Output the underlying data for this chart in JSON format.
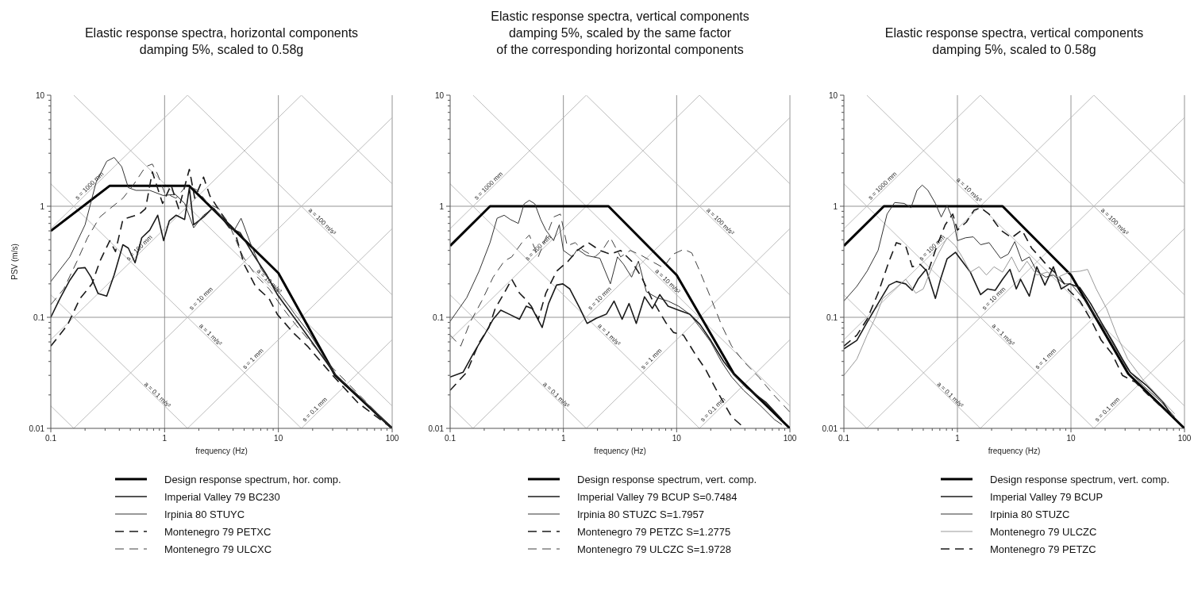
{
  "chart_data": [
    {
      "type": "line",
      "title": "Elastic response spectra, horizontal components\ndamping 5%, scaled to 0.58g",
      "xlabel": "frequency (Hz)",
      "ylabel": "PSV (m/s)",
      "xlim": [
        0.1,
        100
      ],
      "ylim": [
        0.01,
        10
      ],
      "xticks": [
        0.1,
        {
          "value": 0.2,
          "label": null
        },
        {
          "value": 0.3,
          "label": null
        },
        {
          "value": 0.4,
          "label": null
        },
        {
          "value": 0.5,
          "label": null
        },
        {
          "value": 0.6,
          "label": null
        },
        {
          "value": 0.7,
          "label": null
        },
        {
          "value": 0.8,
          "label": null
        },
        {
          "value": 0.9,
          "label": null
        },
        1,
        {
          "value": 2,
          "label": null
        },
        {
          "value": 3,
          "label": null
        },
        {
          "value": 4,
          "label": null
        },
        {
          "value": 5,
          "label": null
        },
        {
          "value": 6,
          "label": null
        },
        {
          "value": 7,
          "label": null
        },
        {
          "value": 8,
          "label": null
        },
        {
          "value": 9,
          "label": null
        },
        10,
        {
          "value": 20,
          "label": null
        },
        {
          "value": 30,
          "label": null
        },
        {
          "value": 40,
          "label": null
        },
        {
          "value": 50,
          "label": null
        },
        {
          "value": 60,
          "label": null
        },
        {
          "value": 70,
          "label": null
        },
        {
          "value": 80,
          "label": null
        },
        {
          "value": 90,
          "label": null
        },
        100
      ],
      "yticks": [
        0.01,
        {
          "value": 0.02,
          "label": null
        },
        {
          "value": 0.03,
          "label": null
        },
        {
          "value": 0.04,
          "label": null
        },
        {
          "value": 0.05,
          "label": null
        },
        {
          "value": 0.06,
          "label": null
        },
        {
          "value": 0.07,
          "label": null
        },
        {
          "value": 0.08,
          "label": null
        },
        {
          "value": 0.09,
          "label": null
        },
        0.1,
        {
          "value": 0.2,
          "label": null
        },
        {
          "value": 0.3,
          "label": null
        },
        {
          "value": 0.4,
          "label": null
        },
        {
          "value": 0.5,
          "label": null
        },
        {
          "value": 0.6,
          "label": null
        },
        {
          "value": 0.7,
          "label": null
        },
        {
          "value": 0.8,
          "label": null
        },
        {
          "value": 0.9,
          "label": null
        },
        1,
        {
          "value": 2,
          "label": null
        },
        {
          "value": 3,
          "label": null
        },
        {
          "value": 4,
          "label": null
        },
        {
          "value": 5,
          "label": null
        },
        {
          "value": 6,
          "label": null
        },
        {
          "value": 7,
          "label": null
        },
        {
          "value": 8,
          "label": null
        },
        {
          "value": 9,
          "label": null
        },
        10
      ],
      "log": "xy",
      "grid": true,
      "legend": "bottom",
      "marker": "none",
      "series": [
        {
          "name": "Design response spectrum, hor. comp.",
          "color": "#000000",
          "line_style": "solid",
          "x": [
            0.1,
            0.33,
            1.64,
            10,
            31.6,
            100
          ],
          "values": [
            0.6,
            1.53,
            1.53,
            0.25,
            0.03,
            0.01
          ]
        },
        {
          "name": "Imperial Valley 79 BC230",
          "color": "#1a1a1a",
          "line_style": "solid",
          "x": [
            0.1,
            0.12,
            0.147,
            0.173,
            0.2,
            0.226,
            0.26,
            0.31,
            0.36,
            0.43,
            0.48,
            0.55,
            0.63,
            0.74,
            0.87,
            0.98,
            1.1,
            1.26,
            1.5,
            1.65,
            1.8,
            2.2,
            2.6,
            3,
            3.7,
            4.6,
            6,
            7.9,
            9.8,
            12.8,
            16.7,
            32,
            100
          ],
          "values": [
            0.1,
            0.147,
            0.216,
            0.276,
            0.28,
            0.23,
            0.164,
            0.155,
            0.24,
            0.45,
            0.42,
            0.31,
            0.52,
            0.61,
            0.83,
            0.49,
            0.74,
            0.83,
            0.76,
            1.47,
            0.68,
            0.8,
            0.95,
            0.85,
            0.64,
            0.58,
            0.37,
            0.24,
            0.16,
            0.11,
            0.076,
            0.03,
            0.01
          ]
        },
        {
          "name": "Irpinia 80 STUYC",
          "color": "#333333",
          "line_style": "solid",
          "x": [
            0.1,
            0.147,
            0.2,
            0.25,
            0.31,
            0.36,
            0.42,
            0.48,
            0.56,
            0.74,
            0.97,
            1.24,
            1.5,
            1.8,
            2.2,
            2.7,
            3.3,
            4.1,
            4.7,
            5.7,
            7.1,
            8.8,
            11,
            14,
            18.7,
            24,
            32,
            50,
            100
          ],
          "values": [
            0.21,
            0.35,
            0.68,
            1.64,
            2.54,
            2.75,
            2.27,
            1.47,
            1.39,
            1.39,
            1.25,
            1.28,
            1.06,
            0.64,
            0.83,
            0.97,
            0.76,
            0.61,
            0.78,
            0.46,
            0.27,
            0.2,
            0.15,
            0.106,
            0.072,
            0.048,
            0.03,
            0.02,
            0.01
          ]
        },
        {
          "name": "Montenegro 79 PETXC",
          "color": "#1a1a1a",
          "line_style": "dashed",
          "x": [
            0.1,
            0.14,
            0.18,
            0.23,
            0.27,
            0.33,
            0.37,
            0.43,
            0.6,
            0.68,
            0.78,
            0.96,
            1.14,
            1.33,
            1.65,
            1.84,
            2.2,
            2.5,
            3.3,
            4.1,
            5,
            6.3,
            8.3,
            9.8,
            13.6,
            18,
            30,
            50,
            100
          ],
          "values": [
            0.055,
            0.085,
            0.147,
            0.2,
            0.32,
            0.49,
            0.39,
            0.76,
            0.85,
            0.95,
            2.04,
            1.06,
            1.55,
            0.95,
            2.15,
            1.18,
            1.83,
            1.24,
            0.8,
            0.61,
            0.3,
            0.19,
            0.147,
            0.106,
            0.072,
            0.055,
            0.03,
            0.017,
            0.01
          ]
        },
        {
          "name": "Montenegro 79 ULCXC",
          "color": "#404040",
          "line_style": "dashed",
          "x": [
            0.1,
            0.13,
            0.17,
            0.21,
            0.27,
            0.33,
            0.43,
            0.53,
            0.68,
            0.78,
            0.87,
            1,
            1.26,
            1.57,
            1.95,
            2.4,
            3,
            3.7,
            4.9,
            6.3,
            8.3,
            11,
            14.3,
            30,
            100
          ],
          "values": [
            0.13,
            0.18,
            0.32,
            0.52,
            0.8,
            0.95,
            1.18,
            1.55,
            2.27,
            2.4,
            1.93,
            1.32,
            1.18,
            1.55,
            1.39,
            1.06,
            0.95,
            0.68,
            0.35,
            0.24,
            0.18,
            0.12,
            0.085,
            0.035,
            0.01
          ]
        },
        {
          "color": "#b4b4b4",
          "x": [
            0.1,
            1.5915
          ],
          "values": [
            0.6283,
            10
          ]
        },
        {
          "color": "#b4b4b4",
          "x": [
            0.1,
            15.915
          ],
          "values": [
            0.06283,
            10
          ]
        },
        {
          "color": "#b4b4b4",
          "x": [
            0.15915,
            100
          ],
          "values": [
            0.01,
            6.283
          ]
        },
        {
          "color": "#b4b4b4",
          "x": [
            1.5915,
            100
          ],
          "values": [
            0.01,
            0.6283
          ]
        },
        {
          "color": "#b4b4b4",
          "x": [
            15.915,
            100
          ],
          "values": [
            0.01,
            0.06283
          ]
        },
        {
          "color": "#b4b4b4",
          "x": [
            15.915,
            100
          ],
          "values": [
            10,
            1.5915
          ]
        },
        {
          "color": "#b4b4b4",
          "x": [
            1.5915,
            100
          ],
          "values": [
            10,
            0.15915
          ]
        },
        {
          "color": "#b4b4b4",
          "x": [
            0.15915,
            100
          ],
          "values": [
            10,
            0.015915
          ]
        },
        {
          "color": "#b4b4b4",
          "x": [
            0.1,
            15.915
          ],
          "values": [
            1.5915,
            0.01
          ]
        },
        {
          "color": "#b4b4b4",
          "x": [
            0.1,
            1.5915
          ],
          "values": [
            0.15915,
            0.01
          ]
        },
        {
          "color": "#b4b4b4",
          "x": [
            0.1,
            0.15915
          ],
          "values": [
            0.015915,
            0.01
          ]
        }
      ],
      "annotations": [
        {
          "text": "s = 1000 mm",
          "x": 0.23,
          "y": 1.45
        },
        {
          "text": "s = 100 mm",
          "x": 0.63,
          "y": 0.4
        },
        {
          "text": "s = 10 mm",
          "x": 2.2,
          "y": 0.14
        },
        {
          "text": "s = 1 mm",
          "x": 6.3,
          "y": 0.04
        },
        {
          "text": "s = 0.1 mm",
          "x": 22,
          "y": 0.014
        },
        {
          "text": "a = 100 m/s²",
          "x": 23,
          "y": 0.69
        },
        {
          "text": "a = 10 m/s²",
          "x": 7.9,
          "y": 0.2
        },
        {
          "text": "a = 1 m/s²",
          "x": 2.4,
          "y": 0.066
        },
        {
          "text": "a = 0.1 m/s²",
          "x": 0.82,
          "y": 0.019
        }
      ]
    },
    {
      "type": "line",
      "title": "Elastic response spectra, vertical components\ndamping 5%, scaled by the same factor\nof the corresponding horizontal components",
      "xlabel": "frequency (Hz)",
      "xlim": [
        0.1,
        100
      ],
      "ylim": [
        0.01,
        10
      ],
      "xticks": [
        0.1,
        {
          "value": 0.2,
          "label": null
        },
        {
          "value": 0.3,
          "label": null
        },
        {
          "value": 0.4,
          "label": null
        },
        {
          "value": 0.5,
          "label": null
        },
        {
          "value": 0.6,
          "label": null
        },
        {
          "value": 0.7,
          "label": null
        },
        {
          "value": 0.8,
          "label": null
        },
        {
          "value": 0.9,
          "label": null
        },
        1,
        {
          "value": 2,
          "label": null
        },
        {
          "value": 3,
          "label": null
        },
        {
          "value": 4,
          "label": null
        },
        {
          "value": 5,
          "label": null
        },
        {
          "value": 6,
          "label": null
        },
        {
          "value": 7,
          "label": null
        },
        {
          "value": 8,
          "label": null
        },
        {
          "value": 9,
          "label": null
        },
        10,
        {
          "value": 20,
          "label": null
        },
        {
          "value": 30,
          "label": null
        },
        {
          "value": 40,
          "label": null
        },
        {
          "value": 50,
          "label": null
        },
        {
          "value": 60,
          "label": null
        },
        {
          "value": 70,
          "label": null
        },
        {
          "value": 80,
          "label": null
        },
        {
          "value": 90,
          "label": null
        },
        100
      ],
      "yticks": [
        0.01,
        {
          "value": 0.02,
          "label": null
        },
        {
          "value": 0.03,
          "label": null
        },
        {
          "value": 0.04,
          "label": null
        },
        {
          "value": 0.05,
          "label": null
        },
        {
          "value": 0.06,
          "label": null
        },
        {
          "value": 0.07,
          "label": null
        },
        {
          "value": 0.08,
          "label": null
        },
        {
          "value": 0.09,
          "label": null
        },
        0.1,
        {
          "value": 0.2,
          "label": null
        },
        {
          "value": 0.3,
          "label": null
        },
        {
          "value": 0.4,
          "label": null
        },
        {
          "value": 0.5,
          "label": null
        },
        {
          "value": 0.6,
          "label": null
        },
        {
          "value": 0.7,
          "label": null
        },
        {
          "value": 0.8,
          "label": null
        },
        {
          "value": 0.9,
          "label": null
        },
        1,
        {
          "value": 2,
          "label": null
        },
        {
          "value": 3,
          "label": null
        },
        {
          "value": 4,
          "label": null
        },
        {
          "value": 5,
          "label": null
        },
        {
          "value": 6,
          "label": null
        },
        {
          "value": 7,
          "label": null
        },
        {
          "value": 8,
          "label": null
        },
        {
          "value": 9,
          "label": null
        },
        10
      ],
      "log": "xy",
      "grid": true,
      "legend": "bottom",
      "marker": "none",
      "series": [
        {
          "name": "Design response spectrum, vert. comp.",
          "color": "#000000",
          "line_style": "solid",
          "x": [
            0.1,
            0.225,
            2.5,
            10,
            32,
            100
          ],
          "values": [
            0.44,
            1,
            1,
            0.24,
            0.031,
            0.01
          ]
        },
        {
          "name": "Imperial Valley 79 BCUP S=0.7484",
          "color": "#1a1a1a",
          "line_style": "solid",
          "x": [
            0.1,
            0.13,
            0.16,
            0.2,
            0.24,
            0.28,
            0.33,
            0.41,
            0.47,
            0.53,
            0.65,
            0.74,
            0.87,
            0.99,
            1.14,
            1.4,
            1.62,
            1.95,
            2.4,
            2.8,
            3.3,
            3.8,
            4.4,
            5.2,
            6.1,
            7.1,
            8.4,
            10.4,
            13,
            16.1,
            20,
            26,
            32.5,
            42,
            62,
            85
          ],
          "values": [
            0.029,
            0.032,
            0.047,
            0.069,
            0.096,
            0.116,
            0.107,
            0.096,
            0.126,
            0.12,
            0.081,
            0.133,
            0.195,
            0.2,
            0.18,
            0.12,
            0.088,
            0.098,
            0.107,
            0.14,
            0.096,
            0.133,
            0.088,
            0.153,
            0.12,
            0.16,
            0.126,
            0.116,
            0.107,
            0.086,
            0.062,
            0.04,
            0.03,
            0.023,
            0.017,
            0.012
          ]
        },
        {
          "name": "Irpinia 80 STUZC S=1.7957",
          "color": "#333333",
          "line_style": "solid",
          "x": [
            0.1,
            0.14,
            0.18,
            0.225,
            0.26,
            0.3,
            0.34,
            0.4,
            0.45,
            0.5,
            0.56,
            0.63,
            0.7,
            0.82,
            0.92,
            1,
            1.2,
            1.33,
            1.6,
            2.1,
            2.6,
            3,
            3.4,
            4,
            4.6,
            5.4,
            6.7,
            8.4,
            10.4,
            13,
            16.1,
            20,
            24.8,
            30.6,
            39,
            55,
            73,
            85
          ],
          "values": [
            0.092,
            0.15,
            0.26,
            0.47,
            0.78,
            0.83,
            0.76,
            0.7,
            1.05,
            1.13,
            1.05,
            0.76,
            0.61,
            0.49,
            0.68,
            0.4,
            0.35,
            0.41,
            0.36,
            0.34,
            0.2,
            0.35,
            0.3,
            0.23,
            0.32,
            0.17,
            0.15,
            0.14,
            0.126,
            0.107,
            0.081,
            0.06,
            0.04,
            0.029,
            0.022,
            0.016,
            0.012,
            0.0108
          ]
        },
        {
          "name": "Montenegro 79 PETZC S=1.2775",
          "color": "#1a1a1a",
          "line_style": "dashed",
          "x": [
            0.1,
            0.14,
            0.18,
            0.22,
            0.25,
            0.3,
            0.35,
            0.41,
            0.45,
            0.52,
            0.6,
            0.7,
            0.87,
            1.1,
            1.33,
            1.66,
            2.1,
            2.6,
            3.2,
            4,
            4.9,
            6,
            8,
            9.4,
            11.5,
            14.5,
            18,
            22,
            26,
            30.6,
            40
          ],
          "values": [
            0.022,
            0.032,
            0.059,
            0.081,
            0.12,
            0.165,
            0.22,
            0.165,
            0.15,
            0.126,
            0.096,
            0.165,
            0.26,
            0.32,
            0.4,
            0.47,
            0.4,
            0.37,
            0.4,
            0.32,
            0.23,
            0.148,
            0.09,
            0.073,
            0.069,
            0.047,
            0.034,
            0.023,
            0.017,
            0.0127,
            0.01
          ]
        },
        {
          "name": "Montenegro 79 ULCZC S=1.9728",
          "color": "#404040",
          "line_style": "dashed",
          "x": [
            0.1,
            0.124,
            0.15,
            0.19,
            0.24,
            0.3,
            0.35,
            0.43,
            0.5,
            0.6,
            0.7,
            0.82,
            0.94,
            1.08,
            1.27,
            1.5,
            1.9,
            2.2,
            2.6,
            3.2,
            3.9,
            4.9,
            6,
            7.6,
            9.3,
            11.6,
            13.6,
            16,
            20,
            24.8,
            30.6,
            39,
            53,
            72,
            100
          ],
          "values": [
            0.069,
            0.055,
            0.09,
            0.14,
            0.23,
            0.32,
            0.35,
            0.47,
            0.55,
            0.35,
            0.52,
            0.8,
            0.85,
            0.44,
            0.47,
            0.4,
            0.35,
            0.4,
            0.52,
            0.35,
            0.4,
            0.36,
            0.32,
            0.28,
            0.37,
            0.41,
            0.38,
            0.26,
            0.15,
            0.086,
            0.055,
            0.04,
            0.029,
            0.02,
            0.014
          ]
        },
        {
          "color": "#b4b4b4",
          "x": [
            0.1,
            1.5915
          ],
          "values": [
            0.6283,
            10
          ]
        },
        {
          "color": "#b4b4b4",
          "x": [
            0.1,
            15.915
          ],
          "values": [
            0.06283,
            10
          ]
        },
        {
          "color": "#b4b4b4",
          "x": [
            0.15915,
            100
          ],
          "values": [
            0.01,
            6.283
          ]
        },
        {
          "color": "#b4b4b4",
          "x": [
            1.5915,
            100
          ],
          "values": [
            0.01,
            0.6283
          ]
        },
        {
          "color": "#b4b4b4",
          "x": [
            15.915,
            100
          ],
          "values": [
            0.01,
            0.06283
          ]
        },
        {
          "color": "#b4b4b4",
          "x": [
            15.915,
            100
          ],
          "values": [
            10,
            1.5915
          ]
        },
        {
          "color": "#b4b4b4",
          "x": [
            1.5915,
            100
          ],
          "values": [
            10,
            0.15915
          ]
        },
        {
          "color": "#b4b4b4",
          "x": [
            0.15915,
            100
          ],
          "values": [
            10,
            0.015915
          ]
        },
        {
          "color": "#b4b4b4",
          "x": [
            0.1,
            15.915
          ],
          "values": [
            1.5915,
            0.01
          ]
        },
        {
          "color": "#b4b4b4",
          "x": [
            0.1,
            1.5915
          ],
          "values": [
            0.15915,
            0.01
          ]
        },
        {
          "color": "#b4b4b4",
          "x": [
            0.1,
            0.15915
          ],
          "values": [
            0.015915,
            0.01
          ]
        }
      ],
      "annotations": [
        {
          "text": "s = 1000 mm",
          "x": 0.23,
          "y": 1.45
        },
        {
          "text": "s = 100 mm",
          "x": 0.63,
          "y": 0.4
        },
        {
          "text": "s = 10 mm",
          "x": 2.2,
          "y": 0.14
        },
        {
          "text": "s = 1 mm",
          "x": 6.3,
          "y": 0.04
        },
        {
          "text": "s = 0.1 mm",
          "x": 22,
          "y": 0.014
        },
        {
          "text": "a = 100 m/s²",
          "x": 23,
          "y": 0.69
        },
        {
          "text": "a = 10 m/s²",
          "x": 7.9,
          "y": 0.2
        },
        {
          "text": "a = 1 m/s²",
          "x": 2.4,
          "y": 0.066
        },
        {
          "text": "a = 0.1 m/s²",
          "x": 0.82,
          "y": 0.019
        }
      ]
    },
    {
      "type": "line",
      "title": "Elastic response spectra, vertical components\ndamping 5%, scaled to 0.58g",
      "xlabel": "frequency (Hz)",
      "xlim": [
        0.1,
        100
      ],
      "ylim": [
        0.01,
        10
      ],
      "xticks": [
        0.1,
        {
          "value": 0.2,
          "label": null
        },
        {
          "value": 0.3,
          "label": null
        },
        {
          "value": 0.4,
          "label": null
        },
        {
          "value": 0.5,
          "label": null
        },
        {
          "value": 0.6,
          "label": null
        },
        {
          "value": 0.7,
          "label": null
        },
        {
          "value": 0.8,
          "label": null
        },
        {
          "value": 0.9,
          "label": null
        },
        1,
        {
          "value": 2,
          "label": null
        },
        {
          "value": 3,
          "label": null
        },
        {
          "value": 4,
          "label": null
        },
        {
          "value": 5,
          "label": null
        },
        {
          "value": 6,
          "label": null
        },
        {
          "value": 7,
          "label": null
        },
        {
          "value": 8,
          "label": null
        },
        {
          "value": 9,
          "label": null
        },
        10,
        {
          "value": 20,
          "label": null
        },
        {
          "value": 30,
          "label": null
        },
        {
          "value": 40,
          "label": null
        },
        {
          "value": 50,
          "label": null
        },
        {
          "value": 60,
          "label": null
        },
        {
          "value": 70,
          "label": null
        },
        {
          "value": 80,
          "label": null
        },
        {
          "value": 90,
          "label": null
        },
        100
      ],
      "yticks": [
        0.01,
        {
          "value": 0.02,
          "label": null
        },
        {
          "value": 0.03,
          "label": null
        },
        {
          "value": 0.04,
          "label": null
        },
        {
          "value": 0.05,
          "label": null
        },
        {
          "value": 0.06,
          "label": null
        },
        {
          "value": 0.07,
          "label": null
        },
        {
          "value": 0.08,
          "label": null
        },
        {
          "value": 0.09,
          "label": null
        },
        0.1,
        {
          "value": 0.2,
          "label": null
        },
        {
          "value": 0.3,
          "label": null
        },
        {
          "value": 0.4,
          "label": null
        },
        {
          "value": 0.5,
          "label": null
        },
        {
          "value": 0.6,
          "label": null
        },
        {
          "value": 0.7,
          "label": null
        },
        {
          "value": 0.8,
          "label": null
        },
        {
          "value": 0.9,
          "label": null
        },
        1,
        {
          "value": 2,
          "label": null
        },
        {
          "value": 3,
          "label": null
        },
        {
          "value": 4,
          "label": null
        },
        {
          "value": 5,
          "label": null
        },
        {
          "value": 6,
          "label": null
        },
        {
          "value": 7,
          "label": null
        },
        {
          "value": 8,
          "label": null
        },
        {
          "value": 9,
          "label": null
        },
        10
      ],
      "log": "xy",
      "grid": true,
      "legend": "bottom",
      "marker": "none",
      "series": [
        {
          "name": "Design response spectrum, vert. comp.",
          "color": "#000000",
          "line_style": "solid",
          "x": [
            0.1,
            0.225,
            2.5,
            10,
            32,
            100
          ],
          "values": [
            0.44,
            1,
            1,
            0.24,
            0.031,
            0.01
          ]
        },
        {
          "name": "Imperial Valley 79 BCUP",
          "color": "#1a1a1a",
          "line_style": "solid",
          "x": [
            0.1,
            0.13,
            0.16,
            0.2,
            0.25,
            0.29,
            0.35,
            0.4,
            0.45,
            0.53,
            0.64,
            0.71,
            0.81,
            0.96,
            1.1,
            1.3,
            1.6,
            1.84,
            2.15,
            2.5,
            2.9,
            3.3,
            3.6,
            4.3,
            5,
            5.9,
            7,
            8.2,
            9.7,
            12,
            14.9,
            18.5,
            23,
            28.4,
            33.3,
            46,
            64,
            79
          ],
          "values": [
            0.052,
            0.062,
            0.09,
            0.133,
            0.195,
            0.21,
            0.2,
            0.175,
            0.22,
            0.27,
            0.148,
            0.22,
            0.335,
            0.385,
            0.32,
            0.255,
            0.16,
            0.18,
            0.175,
            0.22,
            0.27,
            0.18,
            0.22,
            0.155,
            0.285,
            0.195,
            0.285,
            0.18,
            0.2,
            0.185,
            0.133,
            0.09,
            0.062,
            0.042,
            0.032,
            0.0245,
            0.0175,
            0.0126
          ]
        },
        {
          "name": "Irpinia 80 STUZC",
          "color": "#333333",
          "line_style": "solid",
          "x": [
            0.1,
            0.13,
            0.16,
            0.2,
            0.24,
            0.28,
            0.34,
            0.39,
            0.44,
            0.49,
            0.55,
            0.64,
            0.72,
            0.81,
            0.93,
            1,
            1.18,
            1.38,
            1.6,
            1.9,
            2.4,
            2.8,
            3.2,
            3.7,
            4.3,
            5,
            6,
            7,
            8.7,
            10,
            13.4,
            16.7,
            20.6,
            25.4,
            31.6,
            43.6,
            60,
            82
          ],
          "values": [
            0.14,
            0.19,
            0.26,
            0.4,
            0.85,
            1.08,
            1.06,
            0.97,
            1.39,
            1.55,
            1.39,
            1.06,
            0.8,
            1.02,
            0.72,
            0.49,
            0.52,
            0.53,
            0.45,
            0.47,
            0.34,
            0.37,
            0.48,
            0.32,
            0.35,
            0.26,
            0.23,
            0.24,
            0.2,
            0.2,
            0.14,
            0.1,
            0.073,
            0.05,
            0.034,
            0.024,
            0.018,
            0.0127
          ]
        },
        {
          "name": "Montenegro 79 ULCZC",
          "color": "#999999",
          "line_style": "solid",
          "x": [
            0.1,
            0.13,
            0.16,
            0.19,
            0.22,
            0.28,
            0.35,
            0.43,
            0.5,
            0.6,
            0.68,
            0.81,
            0.96,
            1.1,
            1.3,
            1.55,
            1.8,
            2.1,
            2.5,
            3,
            3.5,
            4.1,
            5,
            6.2,
            7.7,
            9.6,
            12,
            14,
            16.7,
            20.6,
            25.4,
            31.6,
            43.6,
            60,
            82
          ],
          "values": [
            0.03,
            0.042,
            0.069,
            0.1,
            0.148,
            0.18,
            0.22,
            0.165,
            0.18,
            0.285,
            0.375,
            0.52,
            0.44,
            0.35,
            0.255,
            0.285,
            0.24,
            0.285,
            0.255,
            0.35,
            0.255,
            0.32,
            0.24,
            0.255,
            0.23,
            0.255,
            0.26,
            0.27,
            0.18,
            0.12,
            0.069,
            0.042,
            0.027,
            0.019,
            0.0135
          ]
        },
        {
          "name": "Montenegro 79 PETZC",
          "color": "#1a1a1a",
          "line_style": "dashed",
          "x": [
            0.1,
            0.13,
            0.16,
            0.2,
            0.25,
            0.29,
            0.35,
            0.4,
            0.47,
            0.55,
            0.66,
            0.78,
            0.91,
            1,
            1.2,
            1.4,
            1.6,
            1.9,
            2.4,
            3,
            3.7,
            4.5,
            5.3,
            6.3,
            7.7,
            9.6,
            12,
            14.9,
            18.5,
            23,
            28.4,
            37,
            48,
            70
          ],
          "values": [
            0.055,
            0.069,
            0.096,
            0.165,
            0.32,
            0.47,
            0.44,
            0.285,
            0.3,
            0.255,
            0.44,
            0.68,
            0.85,
            0.61,
            0.72,
            0.92,
            0.97,
            0.85,
            0.61,
            0.52,
            0.61,
            0.42,
            0.35,
            0.285,
            0.24,
            0.175,
            0.14,
            0.096,
            0.062,
            0.047,
            0.03,
            0.026,
            0.02,
            0.0141
          ]
        },
        {
          "color": "#b4b4b4",
          "x": [
            0.1,
            1.5915
          ],
          "values": [
            0.6283,
            10
          ]
        },
        {
          "color": "#b4b4b4",
          "x": [
            0.1,
            15.915
          ],
          "values": [
            0.06283,
            10
          ]
        },
        {
          "color": "#b4b4b4",
          "x": [
            0.15915,
            100
          ],
          "values": [
            0.01,
            6.283
          ]
        },
        {
          "color": "#b4b4b4",
          "x": [
            1.5915,
            100
          ],
          "values": [
            0.01,
            0.6283
          ]
        },
        {
          "color": "#b4b4b4",
          "x": [
            15.915,
            100
          ],
          "values": [
            0.01,
            0.06283
          ]
        },
        {
          "color": "#b4b4b4",
          "x": [
            15.915,
            100
          ],
          "values": [
            10,
            1.5915
          ]
        },
        {
          "color": "#b4b4b4",
          "x": [
            1.5915,
            100
          ],
          "values": [
            10,
            0.15915
          ]
        },
        {
          "color": "#b4b4b4",
          "x": [
            0.15915,
            100
          ],
          "values": [
            10,
            0.015915
          ]
        },
        {
          "color": "#b4b4b4",
          "x": [
            0.1,
            15.915
          ],
          "values": [
            1.5915,
            0.01
          ]
        },
        {
          "color": "#b4b4b4",
          "x": [
            0.1,
            1.5915
          ],
          "values": [
            0.15915,
            0.01
          ]
        },
        {
          "color": "#b4b4b4",
          "x": [
            0.1,
            0.15915
          ],
          "values": [
            0.015915,
            0.01
          ]
        }
      ],
      "annotations": [
        {
          "text": "s = 1000 mm",
          "x": 0.23,
          "y": 1.45
        },
        {
          "text": "s = 100 mm",
          "x": 0.63,
          "y": 0.4
        },
        {
          "text": "s = 10 mm",
          "x": 2.2,
          "y": 0.14
        },
        {
          "text": "s = 1 mm",
          "x": 6.3,
          "y": 0.04
        },
        {
          "text": "s = 0.1 mm",
          "x": 22,
          "y": 0.014
        },
        {
          "text": "a = 100 m/s²",
          "x": 23,
          "y": 0.69
        },
        {
          "text": "a = 10 m/s²",
          "x": 1.2,
          "y": 1.33
        },
        {
          "text": "a = 1 m/s²",
          "x": 2.4,
          "y": 0.066
        },
        {
          "text": "a = 0.1 m/s²",
          "x": 0.82,
          "y": 0.019
        }
      ]
    }
  ]
}
